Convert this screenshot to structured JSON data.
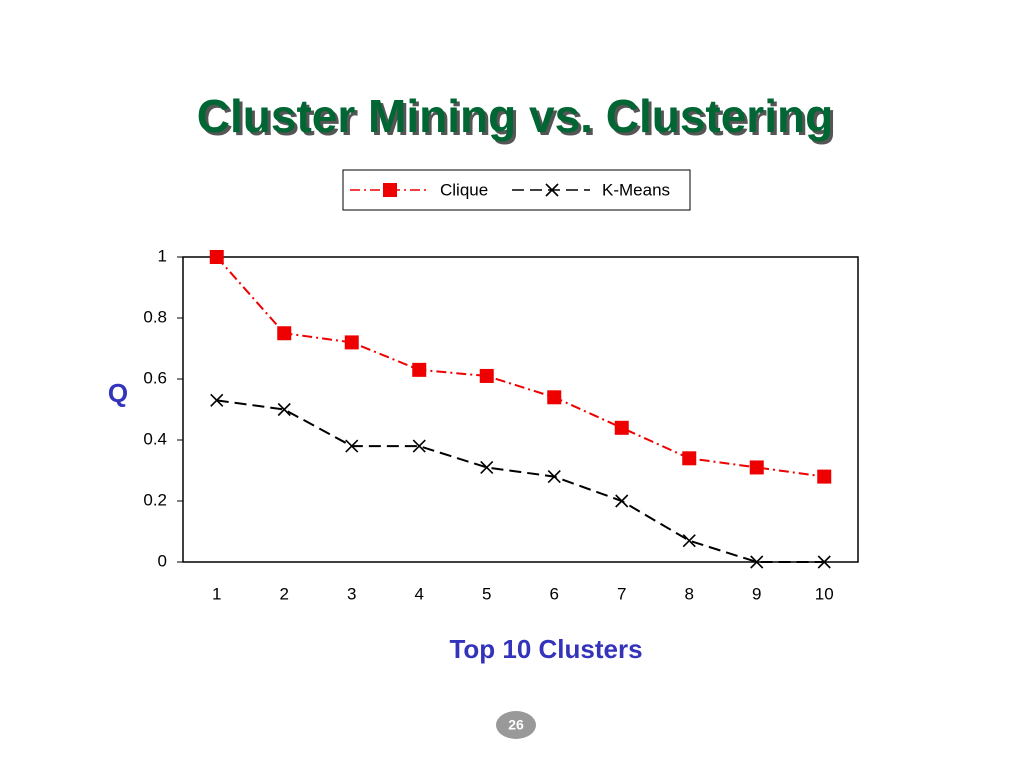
{
  "chart_data": {
    "type": "line",
    "title": "Cluster Mining vs. Clustering",
    "xlabel": "Top 10 Clusters",
    "ylabel": "Q",
    "categories": [
      "1",
      "2",
      "3",
      "4",
      "5",
      "6",
      "7",
      "8",
      "9",
      "10"
    ],
    "series": [
      {
        "name": "Clique",
        "color": "#ee0000",
        "marker": "square",
        "dash": "dash-dot",
        "values": [
          1.0,
          0.75,
          0.72,
          0.63,
          0.61,
          0.54,
          0.44,
          0.34,
          0.31,
          0.28
        ]
      },
      {
        "name": "K-Means",
        "color": "#000000",
        "marker": "x",
        "dash": "dash",
        "values": [
          0.53,
          0.5,
          0.38,
          0.38,
          0.31,
          0.28,
          0.2,
          0.07,
          0,
          0
        ]
      }
    ],
    "ylim": [
      0,
      1
    ],
    "yticks": [
      0,
      0.2,
      0.4,
      0.6,
      0.8,
      1
    ],
    "grid": false,
    "legend": "top"
  },
  "page_number": "26"
}
